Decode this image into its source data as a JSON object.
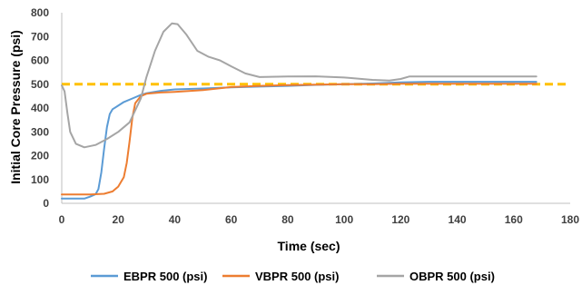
{
  "chart_data": {
    "type": "line",
    "title": "",
    "xlabel": "Time (sec)",
    "ylabel": "Initial Core Pressure (psi)",
    "xlim": [
      0,
      180
    ],
    "ylim": [
      0,
      800
    ],
    "x_ticks": [
      0,
      20,
      40,
      60,
      80,
      100,
      120,
      140,
      160,
      180
    ],
    "y_ticks": [
      0,
      100,
      200,
      300,
      400,
      500,
      600,
      700,
      800
    ],
    "grid": false,
    "legend_position": "bottom",
    "reference_line": {
      "y": 500,
      "color": "#FFC000",
      "style": "dashed"
    },
    "series": [
      {
        "name": "EBPR 500 (psi)",
        "color": "#5B9BD5",
        "points": [
          [
            0,
            20
          ],
          [
            8,
            20
          ],
          [
            10,
            28
          ],
          [
            12,
            38
          ],
          [
            13,
            60
          ],
          [
            14,
            130
          ],
          [
            15,
            230
          ],
          [
            16,
            320
          ],
          [
            17,
            375
          ],
          [
            18,
            395
          ],
          [
            20,
            410
          ],
          [
            22,
            425
          ],
          [
            25,
            440
          ],
          [
            28,
            455
          ],
          [
            30,
            462
          ],
          [
            35,
            472
          ],
          [
            40,
            478
          ],
          [
            50,
            482
          ],
          [
            60,
            487
          ],
          [
            70,
            490
          ],
          [
            80,
            493
          ],
          [
            90,
            497
          ],
          [
            100,
            500
          ],
          [
            110,
            503
          ],
          [
            120,
            508
          ],
          [
            130,
            510
          ],
          [
            140,
            510
          ],
          [
            150,
            510
          ],
          [
            160,
            510
          ],
          [
            168,
            510
          ]
        ]
      },
      {
        "name": "VBPR 500 (psi)",
        "color": "#ED7D31",
        "points": [
          [
            0,
            37
          ],
          [
            10,
            37
          ],
          [
            15,
            40
          ],
          [
            18,
            50
          ],
          [
            20,
            70
          ],
          [
            22,
            110
          ],
          [
            23,
            170
          ],
          [
            24,
            260
          ],
          [
            25,
            360
          ],
          [
            26,
            420
          ],
          [
            28,
            450
          ],
          [
            30,
            460
          ],
          [
            35,
            465
          ],
          [
            40,
            468
          ],
          [
            50,
            475
          ],
          [
            60,
            488
          ],
          [
            70,
            493
          ],
          [
            80,
            496
          ],
          [
            90,
            498
          ],
          [
            100,
            500
          ],
          [
            110,
            500
          ],
          [
            120,
            502
          ],
          [
            130,
            502
          ],
          [
            140,
            502
          ],
          [
            150,
            502
          ],
          [
            160,
            502
          ],
          [
            168,
            502
          ]
        ]
      },
      {
        "name": "OBPR 500 (psi)",
        "color": "#A5A5A5",
        "points": [
          [
            0,
            495
          ],
          [
            1,
            470
          ],
          [
            2,
            380
          ],
          [
            3,
            300
          ],
          [
            5,
            250
          ],
          [
            8,
            235
          ],
          [
            12,
            245
          ],
          [
            16,
            270
          ],
          [
            20,
            300
          ],
          [
            24,
            340
          ],
          [
            28,
            440
          ],
          [
            30,
            530
          ],
          [
            33,
            640
          ],
          [
            36,
            720
          ],
          [
            39,
            755
          ],
          [
            41,
            752
          ],
          [
            44,
            710
          ],
          [
            48,
            640
          ],
          [
            52,
            615
          ],
          [
            56,
            600
          ],
          [
            60,
            575
          ],
          [
            65,
            545
          ],
          [
            70,
            530
          ],
          [
            80,
            532
          ],
          [
            90,
            533
          ],
          [
            100,
            528
          ],
          [
            110,
            518
          ],
          [
            116,
            515
          ],
          [
            120,
            522
          ],
          [
            123,
            532
          ],
          [
            130,
            532
          ],
          [
            140,
            532
          ],
          [
            150,
            532
          ],
          [
            160,
            532
          ],
          [
            168,
            532
          ]
        ]
      }
    ]
  }
}
